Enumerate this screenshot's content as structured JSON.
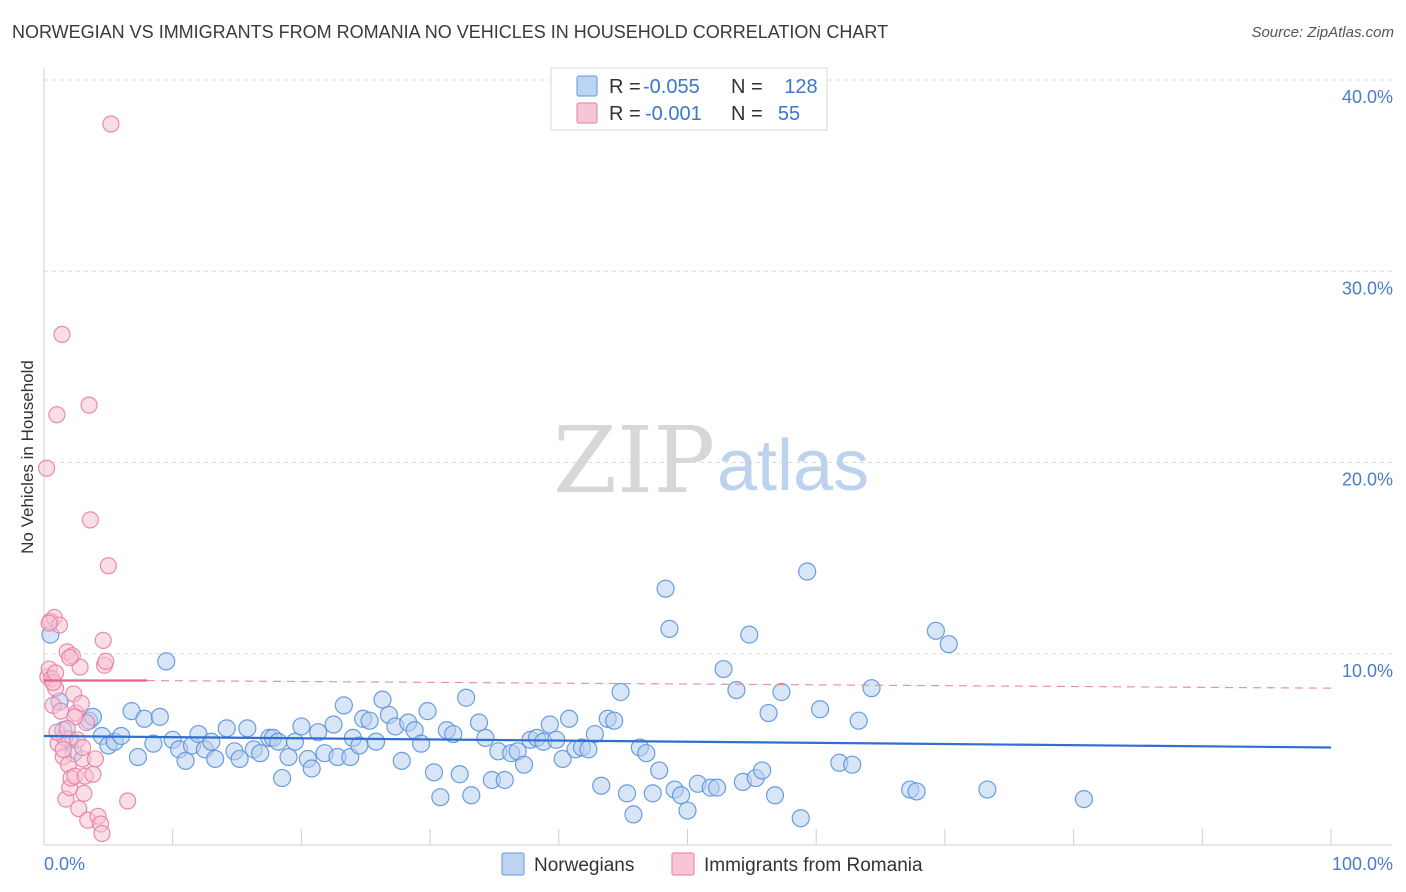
{
  "header": {
    "title": "NORWEGIAN VS IMMIGRANTS FROM ROMANIA NO VEHICLES IN HOUSEHOLD CORRELATION CHART",
    "source": "Source: ZipAtlas.com"
  },
  "watermark": {
    "zip": "ZIP",
    "atlas": "atlas"
  },
  "legend": {
    "r_label": "R =",
    "n_label": "N =",
    "rows": [
      {
        "r": "-0.055",
        "n": "128",
        "color": "#7aa6e0",
        "fill": "#bcd3f2"
      },
      {
        "r": "-0.001",
        "n": "55",
        "color": "#e890ad",
        "fill": "#f7c6d6"
      }
    ]
  },
  "chart_data": {
    "type": "scatter",
    "title": "NORWEGIAN VS IMMIGRANTS FROM ROMANIA NO VEHICLES IN HOUSEHOLD CORRELATION CHART",
    "xlabel": "",
    "ylabel": "No Vehicles in Household",
    "xlim": [
      0,
      100
    ],
    "ylim": [
      0,
      40
    ],
    "x_tick_labels": [
      "0.0%",
      "100.0%"
    ],
    "y_ticks": [
      10,
      20,
      30,
      40
    ],
    "y_tick_labels": [
      "10.0%",
      "20.0%",
      "30.0%",
      "40.0%"
    ],
    "grid": true,
    "series": [
      {
        "name": "Norwegians",
        "color": "#5b93dc",
        "fill": "#b8d0f0",
        "trend": {
          "x": [
            0,
            100
          ],
          "y": [
            5.7,
            5.1
          ]
        },
        "points": [
          [
            0.5,
            11.0
          ],
          [
            1.2,
            7.5
          ],
          [
            1.5,
            6.0
          ],
          [
            2.0,
            5.5
          ],
          [
            2.3,
            4.8
          ],
          [
            3.5,
            6.5
          ],
          [
            3.8,
            6.7
          ],
          [
            4.5,
            5.7
          ],
          [
            5.0,
            5.2
          ],
          [
            5.5,
            5.4
          ],
          [
            6.0,
            5.7
          ],
          [
            6.8,
            7.0
          ],
          [
            7.3,
            4.6
          ],
          [
            7.8,
            6.6
          ],
          [
            8.5,
            5.3
          ],
          [
            9.0,
            6.7
          ],
          [
            9.5,
            9.6
          ],
          [
            10.0,
            5.5
          ],
          [
            10.5,
            5.0
          ],
          [
            11.0,
            4.4
          ],
          [
            11.5,
            5.2
          ],
          [
            12.0,
            5.8
          ],
          [
            12.5,
            5.0
          ],
          [
            13.0,
            5.4
          ],
          [
            13.3,
            4.5
          ],
          [
            14.2,
            6.1
          ],
          [
            14.8,
            4.9
          ],
          [
            15.2,
            4.5
          ],
          [
            15.8,
            6.1
          ],
          [
            16.3,
            5.0
          ],
          [
            16.8,
            4.8
          ],
          [
            17.5,
            5.6
          ],
          [
            17.8,
            5.6
          ],
          [
            18.2,
            5.4
          ],
          [
            18.5,
            3.5
          ],
          [
            19.0,
            4.6
          ],
          [
            19.5,
            5.4
          ],
          [
            20.0,
            6.2
          ],
          [
            20.5,
            4.5
          ],
          [
            20.8,
            4.0
          ],
          [
            21.3,
            5.9
          ],
          [
            21.8,
            4.8
          ],
          [
            22.5,
            6.3
          ],
          [
            22.8,
            4.6
          ],
          [
            23.3,
            7.3
          ],
          [
            23.8,
            4.6
          ],
          [
            24.0,
            5.6
          ],
          [
            24.5,
            5.2
          ],
          [
            24.8,
            6.6
          ],
          [
            25.3,
            6.5
          ],
          [
            25.8,
            5.4
          ],
          [
            26.3,
            7.6
          ],
          [
            26.8,
            6.8
          ],
          [
            27.3,
            6.2
          ],
          [
            27.8,
            4.4
          ],
          [
            28.3,
            6.4
          ],
          [
            28.8,
            6.0
          ],
          [
            29.3,
            5.3
          ],
          [
            29.8,
            7.0
          ],
          [
            30.3,
            3.8
          ],
          [
            30.8,
            2.5
          ],
          [
            31.3,
            6.0
          ],
          [
            31.8,
            5.8
          ],
          [
            32.3,
            3.7
          ],
          [
            32.8,
            7.7
          ],
          [
            33.2,
            2.6
          ],
          [
            33.8,
            6.4
          ],
          [
            34.3,
            5.6
          ],
          [
            34.8,
            3.4
          ],
          [
            35.3,
            4.9
          ],
          [
            35.8,
            3.4
          ],
          [
            36.3,
            4.8
          ],
          [
            36.8,
            4.9
          ],
          [
            37.3,
            4.2
          ],
          [
            37.8,
            5.5
          ],
          [
            38.3,
            5.6
          ],
          [
            38.8,
            5.4
          ],
          [
            39.3,
            6.3
          ],
          [
            39.8,
            5.5
          ],
          [
            40.3,
            4.5
          ],
          [
            40.8,
            6.6
          ],
          [
            41.3,
            5.0
          ],
          [
            41.8,
            5.1
          ],
          [
            42.3,
            5.0
          ],
          [
            42.8,
            5.8
          ],
          [
            43.3,
            3.1
          ],
          [
            43.8,
            6.6
          ],
          [
            44.3,
            6.5
          ],
          [
            44.8,
            8.0
          ],
          [
            45.3,
            2.7
          ],
          [
            45.8,
            1.6
          ],
          [
            46.3,
            5.1
          ],
          [
            46.8,
            4.8
          ],
          [
            47.3,
            2.7
          ],
          [
            47.8,
            3.9
          ],
          [
            48.3,
            13.4
          ],
          [
            48.6,
            11.3
          ],
          [
            49.0,
            2.9
          ],
          [
            49.5,
            2.6
          ],
          [
            50.0,
            1.8
          ],
          [
            50.8,
            3.2
          ],
          [
            51.8,
            3.0
          ],
          [
            52.3,
            3.0
          ],
          [
            52.8,
            9.2
          ],
          [
            53.8,
            8.1
          ],
          [
            54.3,
            3.3
          ],
          [
            54.8,
            11.0
          ],
          [
            55.3,
            3.5
          ],
          [
            55.8,
            3.9
          ],
          [
            56.3,
            6.9
          ],
          [
            56.8,
            2.6
          ],
          [
            57.3,
            8.0
          ],
          [
            58.8,
            1.4
          ],
          [
            59.3,
            14.3
          ],
          [
            60.3,
            7.1
          ],
          [
            61.8,
            4.3
          ],
          [
            62.8,
            4.2
          ],
          [
            63.3,
            6.5
          ],
          [
            64.3,
            8.2
          ],
          [
            67.3,
            2.9
          ],
          [
            67.8,
            2.8
          ],
          [
            69.3,
            11.2
          ],
          [
            70.3,
            10.5
          ],
          [
            73.3,
            2.9
          ],
          [
            80.8,
            2.4
          ]
        ]
      },
      {
        "name": "Immigrants from Romania",
        "color": "#e87fa3",
        "fill": "#f6c2d3",
        "trend": {
          "x": [
            0,
            8
          ],
          "y": [
            8.6,
            8.6
          ],
          "dashed_to": [
            100,
            8.2
          ]
        },
        "points": [
          [
            0.2,
            19.7
          ],
          [
            0.3,
            8.8
          ],
          [
            0.4,
            9.2
          ],
          [
            0.5,
            11.7
          ],
          [
            0.6,
            8.7
          ],
          [
            0.7,
            7.3
          ],
          [
            0.8,
            11.9
          ],
          [
            0.9,
            8.2
          ],
          [
            1.0,
            22.5
          ],
          [
            1.1,
            5.3
          ],
          [
            1.2,
            11.5
          ],
          [
            1.3,
            7.0
          ],
          [
            1.4,
            26.7
          ],
          [
            1.5,
            4.6
          ],
          [
            1.6,
            5.6
          ],
          [
            1.7,
            2.4
          ],
          [
            1.8,
            10.1
          ],
          [
            1.9,
            4.2
          ],
          [
            2.0,
            3.0
          ],
          [
            2.1,
            3.5
          ],
          [
            2.2,
            9.9
          ],
          [
            2.3,
            7.9
          ],
          [
            2.4,
            3.6
          ],
          [
            2.5,
            6.9
          ],
          [
            2.6,
            5.5
          ],
          [
            2.7,
            1.9
          ],
          [
            2.8,
            9.3
          ],
          [
            2.9,
            7.4
          ],
          [
            3.0,
            4.5
          ],
          [
            3.1,
            2.7
          ],
          [
            3.2,
            3.6
          ],
          [
            3.3,
            6.4
          ],
          [
            3.4,
            1.3
          ],
          [
            3.5,
            23.0
          ],
          [
            3.6,
            17.0
          ],
          [
            3.8,
            3.7
          ],
          [
            4.0,
            4.5
          ],
          [
            4.2,
            1.5
          ],
          [
            4.4,
            1.1
          ],
          [
            4.5,
            0.6
          ],
          [
            4.6,
            10.7
          ],
          [
            4.7,
            9.4
          ],
          [
            4.8,
            9.6
          ],
          [
            5.0,
            14.6
          ],
          [
            5.2,
            37.7
          ],
          [
            6.5,
            2.3
          ],
          [
            1.5,
            5.0
          ],
          [
            2.0,
            9.8
          ],
          [
            0.7,
            8.5
          ],
          [
            1.0,
            5.9
          ],
          [
            2.4,
            6.7
          ],
          [
            0.4,
            11.6
          ],
          [
            3.0,
            5.1
          ],
          [
            1.8,
            6.1
          ],
          [
            0.9,
            9.0
          ]
        ]
      }
    ]
  },
  "bottom_legend": {
    "items": [
      {
        "label": "Norwegians",
        "color": "#7aa6e0",
        "fill": "#bcd3f2"
      },
      {
        "label": "Immigrants from Romania",
        "color": "#e890ad",
        "fill": "#f7c6d6"
      }
    ]
  }
}
